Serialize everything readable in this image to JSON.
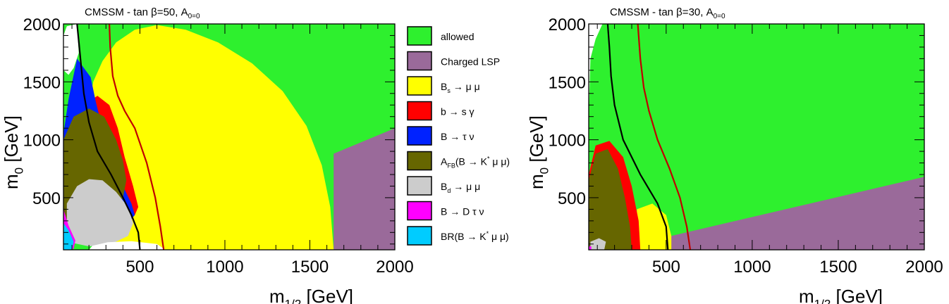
{
  "colors": {
    "allowed": "#2ef02e",
    "charged_lsp": "#9a6a9a",
    "bs_mumu": "#ffff00",
    "b_sgamma": "#ff0000",
    "b_taunu": "#0022ff",
    "afb": "#666600",
    "bd_mumu": "#cccccc",
    "b_dtaunu": "#ff00ff",
    "br_kmumu": "#00ccff",
    "contour_black": "#000000",
    "contour_red": "#c00000"
  },
  "legend": {
    "items": [
      {
        "key": "allowed",
        "label": "allowed",
        "color": "#2ef02e"
      },
      {
        "key": "charged_lsp",
        "label": "Charged LSP",
        "color": "#9a6a9a"
      },
      {
        "key": "bs_mumu",
        "label": "B_s → μ μ",
        "color": "#ffff00"
      },
      {
        "key": "b_sgamma",
        "label": "b → s γ",
        "color": "#ff0000"
      },
      {
        "key": "b_taunu",
        "label": "B → τ ν",
        "color": "#0022ff"
      },
      {
        "key": "afb",
        "label": "A_FB(B → K^* μ μ)",
        "color": "#666600"
      },
      {
        "key": "bd_mumu",
        "label": "B_d → μ μ",
        "color": "#cccccc"
      },
      {
        "key": "b_dtaunu",
        "label": "B → D τ ν",
        "color": "#ff00ff"
      },
      {
        "key": "br_kmumu",
        "label": "BR(B → K^* μ μ)",
        "color": "#00ccff"
      }
    ]
  },
  "chart_data": [
    {
      "type": "area",
      "title": "CMSSM  -  tan β=50,  A_0=0",
      "xlabel": "m_1/2 [GeV]",
      "ylabel": "m_0 [GeV]",
      "xlim": [
        50,
        2000
      ],
      "ylim": [
        50,
        2000
      ],
      "xticks": [
        500,
        1000,
        1500,
        2000
      ],
      "yticks": [
        500,
        1000,
        1500,
        2000
      ],
      "grid": false,
      "regions": [
        {
          "key": "allowed",
          "points": [
            [
              50,
              50
            ],
            [
              2000,
              50
            ],
            [
              2000,
              2000
            ],
            [
              50,
              2000
            ]
          ]
        },
        {
          "key": "charged_lsp",
          "points": [
            [
              1640,
              50
            ],
            [
              2000,
              50
            ],
            [
              2000,
              1100
            ],
            [
              1640,
              880
            ]
          ]
        },
        {
          "key": "bs_mumu",
          "points": [
            [
              230,
              50
            ],
            [
              1640,
              50
            ],
            [
              1620,
              420
            ],
            [
              1570,
              780
            ],
            [
              1480,
              1120
            ],
            [
              1340,
              1420
            ],
            [
              1160,
              1660
            ],
            [
              960,
              1840
            ],
            [
              770,
              1950
            ],
            [
              600,
              1990
            ],
            [
              470,
              1950
            ],
            [
              360,
              1840
            ],
            [
              280,
              1680
            ],
            [
              225,
              1500
            ],
            [
              200,
              1300
            ],
            [
              195,
              1000
            ],
            [
              200,
              600
            ],
            [
              210,
              300
            ]
          ]
        },
        {
          "key": "b_sgamma",
          "points": [
            [
              200,
              350
            ],
            [
              200,
              1330
            ],
            [
              250,
              1380
            ],
            [
              320,
              1300
            ],
            [
              370,
              1100
            ],
            [
              410,
              850
            ],
            [
              460,
              600
            ],
            [
              490,
              420
            ],
            [
              470,
              350
            ]
          ]
        },
        {
          "key": "b_taunu",
          "points": [
            [
              50,
              1050
            ],
            [
              80,
              1350
            ],
            [
              130,
              1700
            ],
            [
              210,
              1540
            ],
            [
              240,
              1330
            ],
            [
              270,
              1150
            ],
            [
              330,
              850
            ],
            [
              400,
              600
            ],
            [
              450,
              450
            ],
            [
              470,
              350
            ],
            [
              430,
              280
            ],
            [
              300,
              200
            ],
            [
              150,
              200
            ],
            [
              50,
              350
            ]
          ]
        },
        {
          "key": "afb",
          "points": [
            [
              50,
              300
            ],
            [
              50,
              1000
            ],
            [
              110,
              1200
            ],
            [
              200,
              1270
            ],
            [
              290,
              1200
            ],
            [
              360,
              1000
            ],
            [
              400,
              820
            ],
            [
              420,
              650
            ],
            [
              400,
              500
            ],
            [
              300,
              300
            ],
            [
              150,
              200
            ]
          ]
        },
        {
          "key": "bd_mumu",
          "points": [
            [
              70,
              120
            ],
            [
              70,
              450
            ],
            [
              130,
              600
            ],
            [
              200,
              660
            ],
            [
              280,
              650
            ],
            [
              360,
              550
            ],
            [
              430,
              420
            ],
            [
              460,
              280
            ],
            [
              430,
              170
            ],
            [
              330,
              100
            ],
            [
              200,
              80
            ]
          ]
        },
        {
          "key": "b_dtaunu",
          "points": [
            [
              50,
              50
            ],
            [
              50,
              400
            ],
            [
              80,
              260
            ],
            [
              120,
              130
            ],
            [
              110,
              60
            ]
          ]
        },
        {
          "key": "br_kmumu",
          "points": [
            [
              50,
              50
            ],
            [
              50,
              280
            ],
            [
              80,
              220
            ],
            [
              110,
              120
            ],
            [
              100,
              50
            ]
          ]
        },
        {
          "key": "white",
          "points": [
            [
              200,
              50
            ],
            [
              650,
              50
            ],
            [
              600,
              100
            ],
            [
              450,
              125
            ],
            [
              310,
              115
            ],
            [
              220,
              85
            ]
          ]
        },
        {
          "key": "white",
          "points": [
            [
              50,
              1900
            ],
            [
              70,
              1980
            ],
            [
              130,
              2000
            ],
            [
              140,
              1750
            ],
            [
              110,
              1620
            ],
            [
              80,
              1560
            ],
            [
              50,
              1600
            ]
          ]
        }
      ],
      "contours": [
        {
          "key": "contour_red",
          "points": [
            [
              640,
              50
            ],
            [
              620,
              250
            ],
            [
              590,
              500
            ],
            [
              540,
              800
            ],
            [
              470,
              1100
            ],
            [
              410,
              1250
            ],
            [
              370,
              1380
            ],
            [
              340,
              1550
            ],
            [
              325,
              1800
            ],
            [
              320,
              2000
            ]
          ]
        },
        {
          "key": "contour_black",
          "points": [
            [
              500,
              50
            ],
            [
              490,
              200
            ],
            [
              450,
              350
            ],
            [
              400,
              500
            ],
            [
              330,
              700
            ],
            [
              250,
              900
            ],
            [
              200,
              1150
            ],
            [
              170,
              1400
            ],
            [
              150,
              1700
            ],
            [
              130,
              2000
            ]
          ]
        }
      ]
    },
    {
      "type": "area",
      "title": "CMSSM  -  tan β=30,  A_0=0",
      "xlabel": "m_1/2 [GeV]",
      "ylabel": "m_0 [GeV]",
      "xlim": [
        50,
        2000
      ],
      "ylim": [
        50,
        2000
      ],
      "xticks": [
        500,
        1000,
        1500,
        2000
      ],
      "yticks": [
        500,
        1000,
        1500,
        2000
      ],
      "grid": false,
      "regions": [
        {
          "key": "allowed",
          "points": [
            [
              50,
              50
            ],
            [
              2000,
              50
            ],
            [
              2000,
              2000
            ],
            [
              50,
              2000
            ]
          ]
        },
        {
          "key": "charged_lsp",
          "points": [
            [
              500,
              50
            ],
            [
              2000,
              50
            ],
            [
              2000,
              680
            ],
            [
              530,
              170
            ]
          ]
        },
        {
          "key": "bs_mumu",
          "points": [
            [
              330,
              50
            ],
            [
              530,
              50
            ],
            [
              530,
              170
            ],
            [
              500,
              350
            ],
            [
              420,
              450
            ],
            [
              330,
              400
            ]
          ]
        },
        {
          "key": "b_sgamma",
          "points": [
            [
              50,
              50
            ],
            [
              350,
              50
            ],
            [
              340,
              300
            ],
            [
              300,
              600
            ],
            [
              250,
              850
            ],
            [
              170,
              990
            ],
            [
              90,
              950
            ],
            [
              50,
              700
            ]
          ]
        },
        {
          "key": "afb",
          "points": [
            [
              50,
              50
            ],
            [
              300,
              50
            ],
            [
              290,
              250
            ],
            [
              260,
              500
            ],
            [
              220,
              750
            ],
            [
              160,
              920
            ],
            [
              90,
              880
            ],
            [
              50,
              650
            ]
          ]
        },
        {
          "key": "bd_mumu",
          "points": [
            [
              60,
              50
            ],
            [
              140,
              50
            ],
            [
              150,
              120
            ],
            [
              110,
              150
            ],
            [
              60,
              120
            ]
          ]
        },
        {
          "key": "b_dtaunu",
          "points": [
            [
              50,
              50
            ],
            [
              65,
              50
            ],
            [
              65,
              80
            ],
            [
              50,
              80
            ]
          ]
        },
        {
          "key": "white",
          "points": [
            [
              50,
              1200
            ],
            [
              60,
              1700
            ],
            [
              90,
              1870
            ],
            [
              130,
              2000
            ],
            [
              50,
              2000
            ]
          ]
        }
      ],
      "contours": [
        {
          "key": "contour_red",
          "points": [
            [
              640,
              50
            ],
            [
              620,
              250
            ],
            [
              580,
              500
            ],
            [
              520,
              750
            ],
            [
              450,
              1000
            ],
            [
              400,
              1250
            ],
            [
              370,
              1450
            ],
            [
              350,
              1700
            ],
            [
              335,
              2000
            ]
          ]
        },
        {
          "key": "contour_black",
          "points": [
            [
              510,
              50
            ],
            [
              500,
              250
            ],
            [
              450,
              450
            ],
            [
              350,
              700
            ],
            [
              250,
              1000
            ],
            [
              200,
              1300
            ],
            [
              180,
              1550
            ],
            [
              170,
              1800
            ],
            [
              160,
              2000
            ]
          ]
        }
      ]
    }
  ]
}
